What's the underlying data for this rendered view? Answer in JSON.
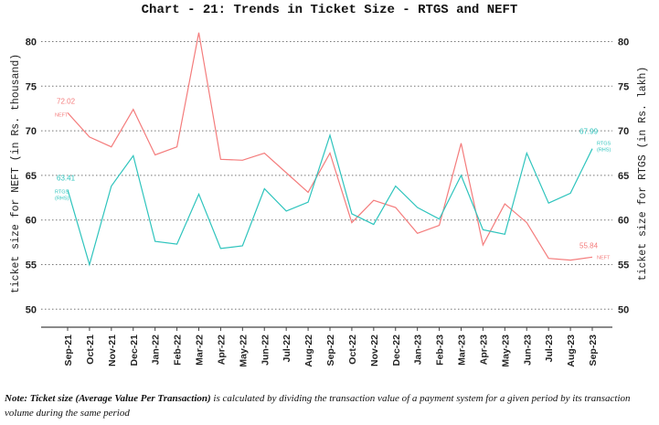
{
  "chart_data": {
    "type": "line",
    "title": "Chart - 21: Trends in Ticket Size - RTGS and NEFT",
    "ylabel_left": "ticket size for NEFT (in Rs. thousand)",
    "ylabel_right": "ticket size for RTGS (in Rs. lakh)",
    "ylim": [
      47,
      82
    ],
    "yticks": [
      50,
      55,
      60,
      65,
      70,
      75,
      80
    ],
    "grid": true,
    "categories": [
      "Sep-21",
      "Oct-21",
      "Nov-21",
      "Dec-21",
      "Jan-22",
      "Feb-22",
      "Mar-22",
      "Apr-22",
      "May-22",
      "Jun-22",
      "Jul-22",
      "Aug-22",
      "Sep-22",
      "Oct-22",
      "Nov-22",
      "Dec-22",
      "Jan-23",
      "Feb-23",
      "Mar-23",
      "Apr-23",
      "May-23",
      "Jun-23",
      "Jul-23",
      "Aug-23",
      "Sep-23"
    ],
    "series": [
      {
        "name": "NEFT",
        "color": "#f47c7c",
        "axis": "left",
        "start_label": "72.02",
        "end_label": "55.84",
        "values": [
          72.02,
          69.3,
          68.2,
          72.4,
          67.3,
          68.2,
          81.0,
          66.8,
          66.7,
          67.5,
          65.3,
          63.1,
          67.5,
          59.7,
          62.2,
          61.4,
          58.5,
          59.4,
          68.6,
          57.2,
          61.8,
          59.7,
          55.7,
          55.5,
          55.84
        ]
      },
      {
        "name": "RTGS (RHS)",
        "color": "#2ec4bd",
        "axis": "right",
        "start_label": "63.41",
        "end_label": "67.99",
        "values": [
          63.41,
          55.0,
          63.8,
          67.2,
          57.6,
          57.3,
          62.9,
          56.8,
          57.1,
          63.5,
          61.0,
          62.0,
          69.5,
          60.7,
          59.5,
          63.8,
          61.4,
          60.1,
          65.0,
          58.9,
          58.4,
          67.5,
          61.9,
          63.0,
          67.99
        ]
      }
    ]
  },
  "note": {
    "bold": "Note: Ticket size (Average Value Per Transaction)",
    "rest": " is calculated by dividing the transaction value of a payment system for a given period by its transaction volume during the same period"
  }
}
